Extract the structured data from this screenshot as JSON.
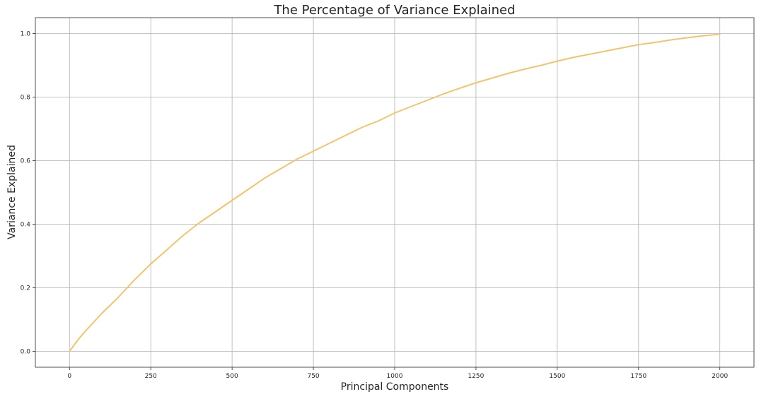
{
  "chart_data": {
    "type": "line",
    "title": "The Percentage of Variance Explained",
    "xlabel": "Principal Components",
    "ylabel": "Variance Explained",
    "xlim": [
      -105,
      2105
    ],
    "ylim": [
      -0.05,
      1.05
    ],
    "xticks": [
      0,
      250,
      500,
      750,
      1000,
      1250,
      1500,
      1750,
      2000
    ],
    "xtick_labels": [
      "0",
      "250",
      "500",
      "750",
      "1000",
      "1250",
      "1500",
      "1750",
      "2000"
    ],
    "yticks": [
      0.0,
      0.2,
      0.4,
      0.6,
      0.8,
      1.0
    ],
    "ytick_labels": [
      "0.0",
      "0.2",
      "0.4",
      "0.6",
      "0.8",
      "1.0"
    ],
    "grid": true,
    "line_color": "#f2c46d",
    "series": [
      {
        "x": [
          0,
          25,
          50,
          100,
          150,
          200,
          250,
          300,
          350,
          400,
          450,
          500,
          550,
          600,
          650,
          700,
          750,
          800,
          850,
          900,
          950,
          1000,
          1050,
          1100,
          1150,
          1200,
          1250,
          1300,
          1350,
          1400,
          1450,
          1500,
          1550,
          1600,
          1650,
          1700,
          1750,
          1800,
          1850,
          1900,
          1950,
          2000
        ],
        "values": [
          0.0,
          0.035,
          0.065,
          0.12,
          0.17,
          0.225,
          0.275,
          0.32,
          0.365,
          0.405,
          0.44,
          0.475,
          0.51,
          0.545,
          0.575,
          0.605,
          0.63,
          0.655,
          0.68,
          0.705,
          0.725,
          0.75,
          0.77,
          0.79,
          0.81,
          0.828,
          0.845,
          0.86,
          0.875,
          0.888,
          0.9,
          0.913,
          0.925,
          0.935,
          0.945,
          0.955,
          0.965,
          0.972,
          0.98,
          0.987,
          0.993,
          0.998
        ]
      }
    ]
  }
}
